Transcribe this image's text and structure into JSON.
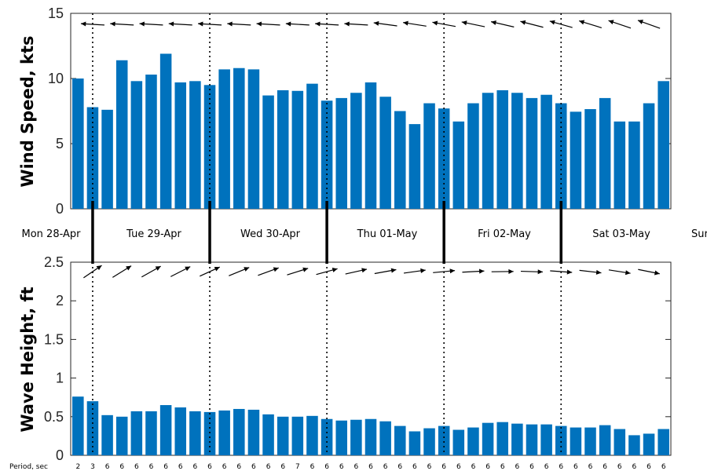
{
  "chart_data": [
    {
      "type": "bar",
      "ylabel": "Wind Speed, kts",
      "ylim": [
        0,
        15
      ],
      "yticks": [
        "0",
        "5",
        "10",
        "15"
      ],
      "bar_color": "#0072bd",
      "direction_arrows": "wind direction arrows above bars (pointing left / west)",
      "values": [
        10.0,
        7.8,
        7.6,
        11.4,
        9.8,
        10.3,
        11.9,
        9.7,
        9.8,
        9.5,
        10.7,
        10.8,
        10.7,
        8.7,
        9.1,
        9.05,
        9.6,
        8.3,
        8.5,
        8.9,
        9.7,
        8.6,
        7.5,
        6.5,
        8.1,
        7.7,
        6.7,
        8.1,
        8.9,
        9.1,
        8.9,
        8.5,
        8.75,
        8.1,
        7.45,
        7.65,
        8.5,
        6.7,
        6.7,
        8.1,
        9.8
      ]
    },
    {
      "type": "bar",
      "ylabel": "Wave Height, ft",
      "ylim": [
        0,
        2.5
      ],
      "yticks": [
        "0",
        "0.5",
        "1",
        "1.5",
        "2",
        "2.5"
      ],
      "bar_color": "#0072bd",
      "direction_arrows": "wave direction arrows above bars (pointing up-right, turning to right)",
      "values": [
        0.76,
        0.7,
        0.52,
        0.5,
        0.57,
        0.57,
        0.65,
        0.62,
        0.57,
        0.56,
        0.58,
        0.6,
        0.59,
        0.53,
        0.5,
        0.5,
        0.51,
        0.47,
        0.45,
        0.46,
        0.47,
        0.44,
        0.38,
        0.31,
        0.35,
        0.38,
        0.33,
        0.36,
        0.42,
        0.43,
        0.41,
        0.4,
        0.4,
        0.38,
        0.36,
        0.36,
        0.39,
        0.34,
        0.26,
        0.28,
        0.34
      ]
    }
  ],
  "days": [
    "Mon 28-Apr",
    "Tue 29-Apr",
    "Wed 30-Apr",
    "Thu 01-May",
    "Fri 02-May",
    "Sat 03-May",
    "Sur"
  ],
  "period_label": "Period, sec",
  "periods": [
    "2",
    "3",
    "6",
    "6",
    "6",
    "6",
    "6",
    "6",
    "6",
    "6",
    "6",
    "6",
    "6",
    "6",
    "6",
    "7",
    "6",
    "6",
    "6",
    "6",
    "6",
    "6",
    "6",
    "6",
    "6",
    "6",
    "6",
    "6",
    "6",
    "6",
    "6",
    "6",
    "6",
    "6",
    "6",
    "6",
    "6",
    "6",
    "6",
    "6",
    "6"
  ]
}
